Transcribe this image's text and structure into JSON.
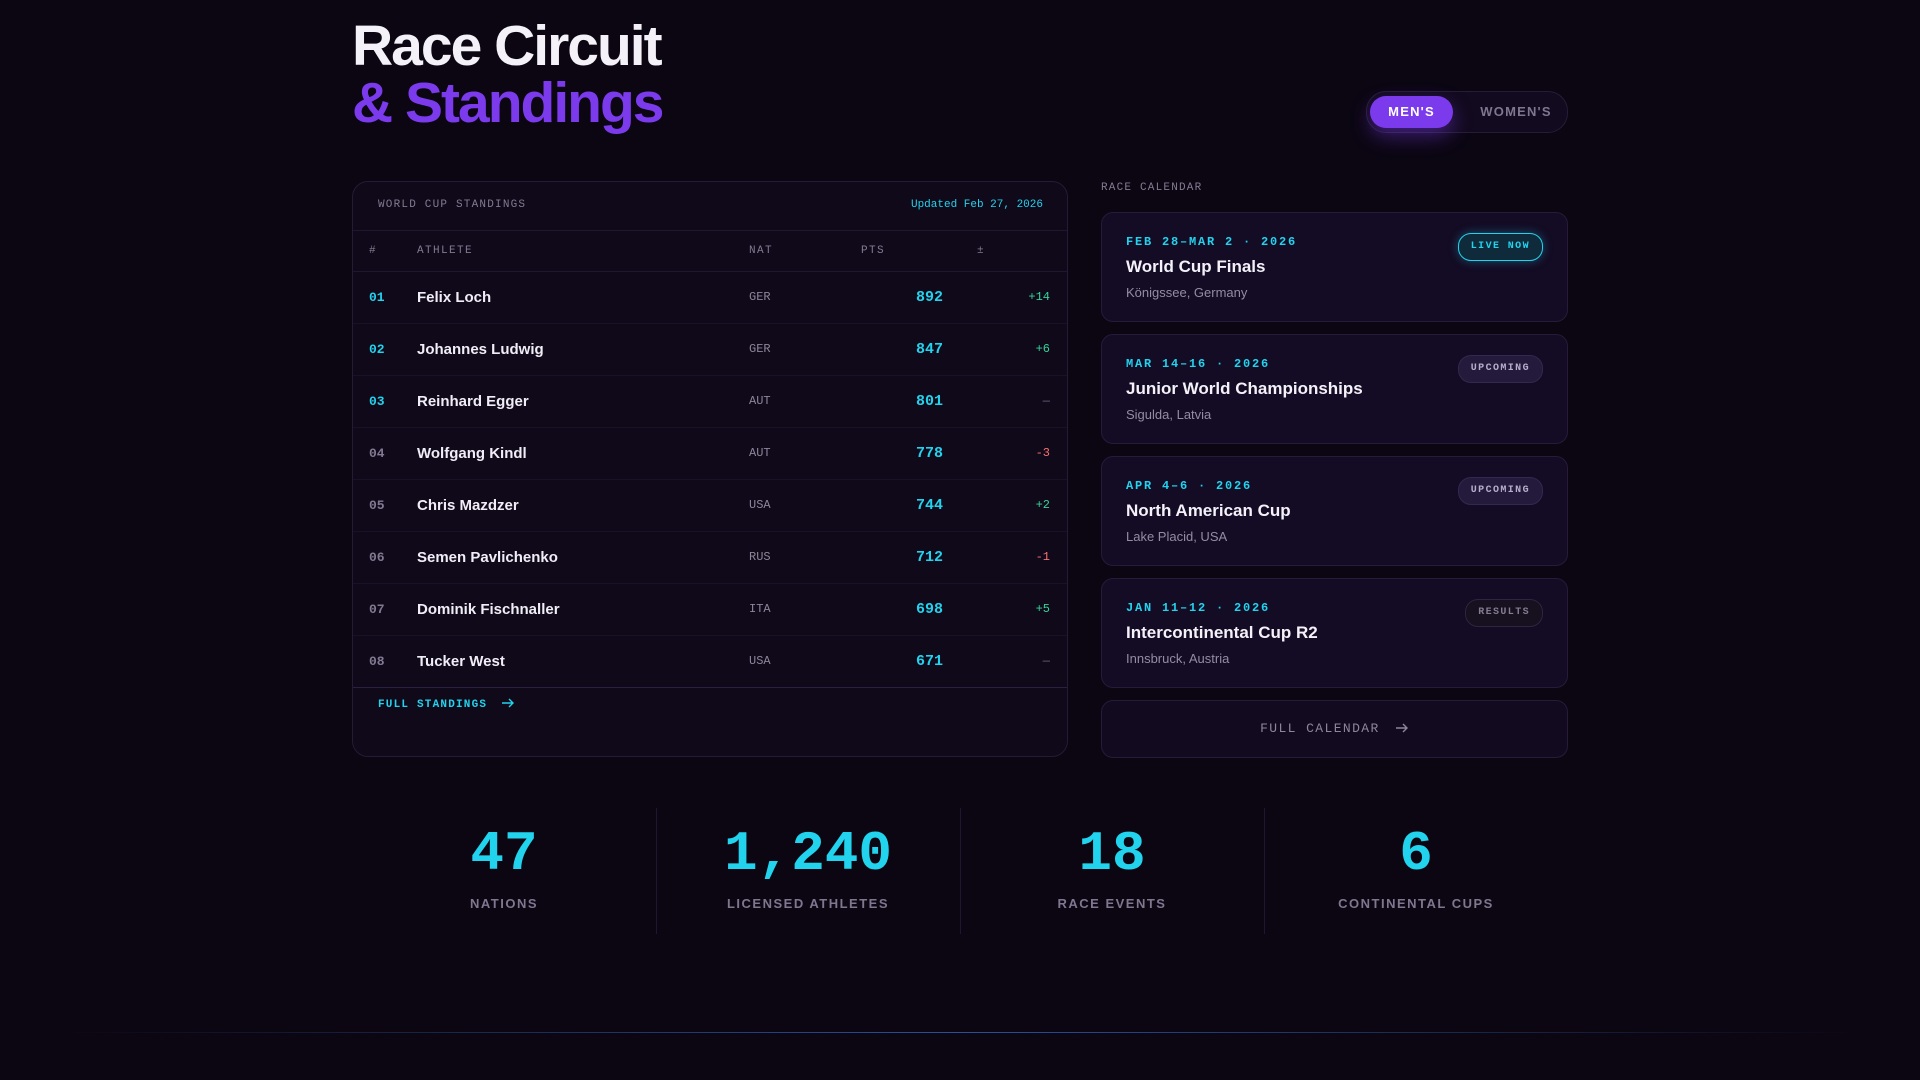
{
  "header": {
    "title_line1": "Race Circuit",
    "title_line2": "& Standings"
  },
  "toggle": {
    "men": "MEN'S",
    "women": "WOMEN'S",
    "active": "MEN'S"
  },
  "standings": {
    "label": "WORLD CUP STANDINGS",
    "updated": "Updated Feb 27, 2026",
    "columns": {
      "rank": "#",
      "athlete": "ATHLETE",
      "nat": "NAT",
      "pts": "PTS",
      "delta": "±"
    },
    "rows": [
      {
        "rank": "01",
        "name": "Felix Loch",
        "nat": "GER",
        "pts": "892",
        "delta": "+14"
      },
      {
        "rank": "02",
        "name": "Johannes Ludwig",
        "nat": "GER",
        "pts": "847",
        "delta": "+6"
      },
      {
        "rank": "03",
        "name": "Reinhard Egger",
        "nat": "AUT",
        "pts": "801",
        "delta": "—"
      },
      {
        "rank": "04",
        "name": "Wolfgang Kindl",
        "nat": "AUT",
        "pts": "778",
        "delta": "-3"
      },
      {
        "rank": "05",
        "name": "Chris Mazdzer",
        "nat": "USA",
        "pts": "744",
        "delta": "+2"
      },
      {
        "rank": "06",
        "name": "Semen Pavlichenko",
        "nat": "RUS",
        "pts": "712",
        "delta": "-1"
      },
      {
        "rank": "07",
        "name": "Dominik Fischnaller",
        "nat": "ITA",
        "pts": "698",
        "delta": "+5"
      },
      {
        "rank": "08",
        "name": "Tucker West",
        "nat": "USA",
        "pts": "671",
        "delta": "—"
      }
    ],
    "full_link": "FULL STANDINGS",
    "full_link_icon": "arrow-right-icon"
  },
  "calendar": {
    "label": "RACE CALENDAR",
    "events": [
      {
        "date": "FEB 28–MAR 2 · 2026",
        "name": "World Cup Finals",
        "location": "Königssee, Germany",
        "badge": "LIVE NOW"
      },
      {
        "date": "MAR 14–16 · 2026",
        "name": "Junior World Championships",
        "location": "Sigulda, Latvia",
        "badge": "UPCOMING"
      },
      {
        "date": "APR 4–6 · 2026",
        "name": "North American Cup",
        "location": "Lake Placid, USA",
        "badge": "UPCOMING"
      },
      {
        "date": "JAN 11–12 · 2026",
        "name": "Intercontinental Cup R2",
        "location": "Innsbruck, Austria",
        "badge": "RESULTS"
      }
    ],
    "full_link": "FULL CALENDAR"
  },
  "stats": [
    {
      "value": "47",
      "label": "NATIONS"
    },
    {
      "value": "1,240",
      "label": "LICENSED ATHLETES"
    },
    {
      "value": "18",
      "label": "RACE EVENTS"
    },
    {
      "value": "6",
      "label": "CONTINENTAL CUPS"
    }
  ],
  "colors": {
    "accent_purple": "#7c3aed",
    "accent_cyan": "#22d3ee",
    "positive": "#34d399",
    "negative": "#f87171",
    "background": "#0b0612"
  }
}
